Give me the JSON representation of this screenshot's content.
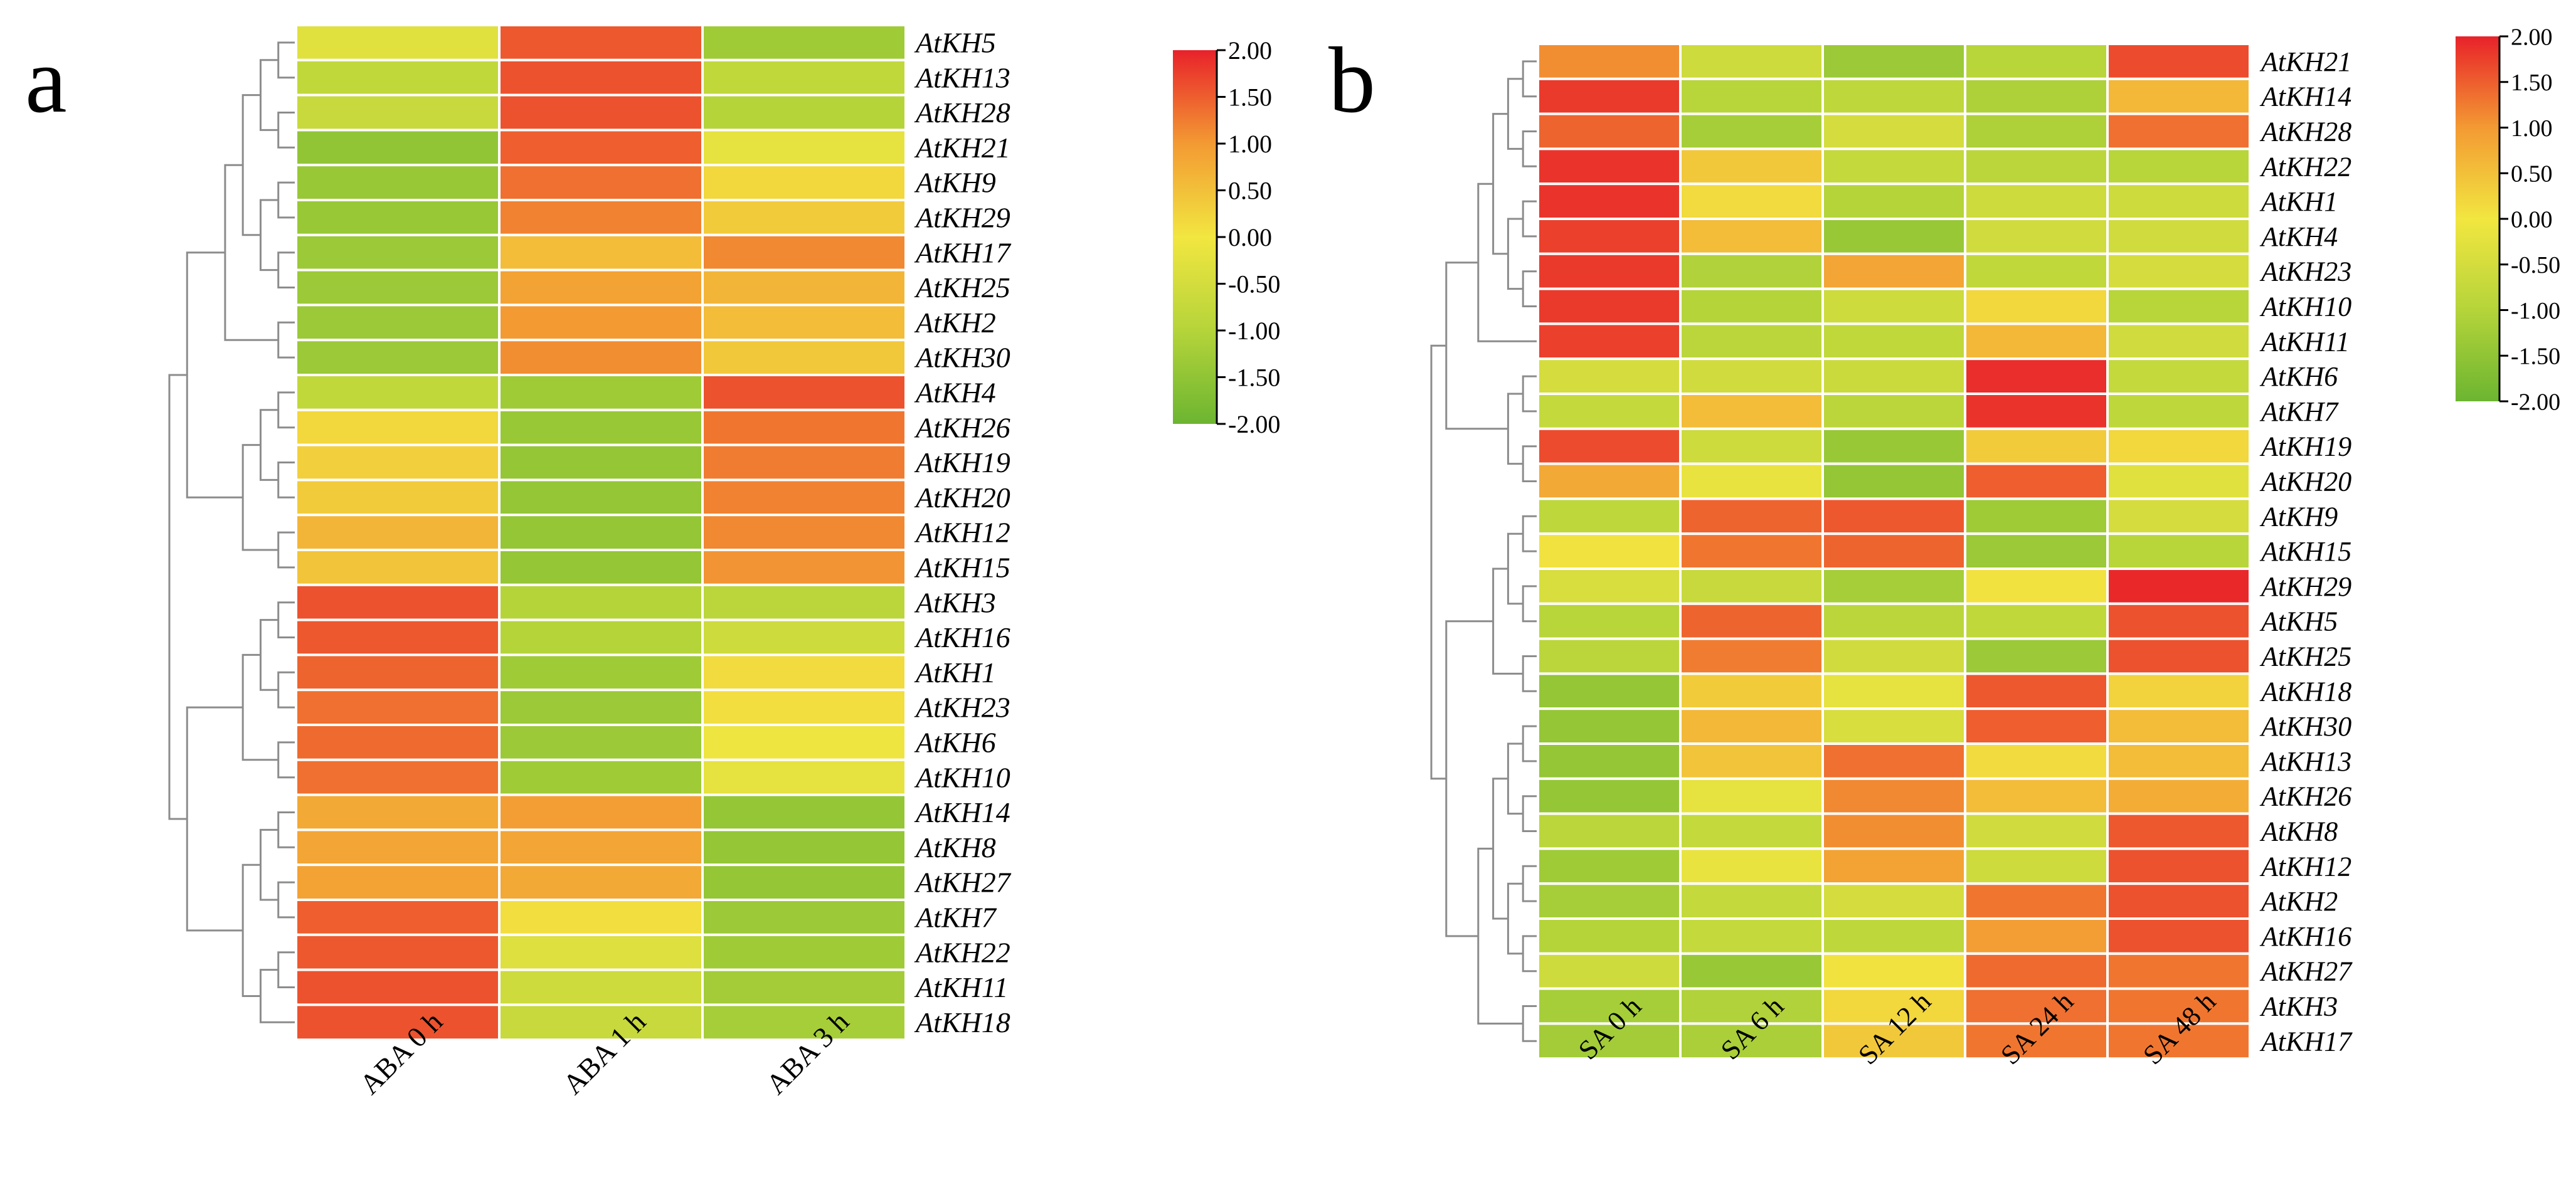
{
  "panels": [
    {
      "letter": "a"
    },
    {
      "letter": "b"
    }
  ],
  "colors": {
    "scale": [
      "#6cb531",
      "#b5d43a",
      "#f2e640",
      "#f39a33",
      "#e8222a"
    ],
    "cell_border": "#ffffff",
    "dendrogram": "#8c8c8c"
  },
  "chart_data": [
    {
      "type": "heatmap",
      "title": "",
      "columns": [
        "ABA 0 h",
        "ABA 1 h",
        "ABA 3 h"
      ],
      "rows": [
        "AtKH5",
        "AtKH13",
        "AtKH28",
        "AtKH21",
        "AtKH9",
        "AtKH29",
        "AtKH17",
        "AtKH25",
        "AtKH2",
        "AtKH30",
        "AtKH4",
        "AtKH26",
        "AtKH19",
        "AtKH20",
        "AtKH12",
        "AtKH15",
        "AtKH3",
        "AtKH16",
        "AtKH1",
        "AtKH23",
        "AtKH6",
        "AtKH10",
        "AtKH14",
        "AtKH8",
        "AtKH27",
        "AtKH7",
        "AtKH22",
        "AtKH11",
        "AtKH18"
      ],
      "values": [
        [
          -0.3,
          1.55,
          -1.3
        ],
        [
          -0.8,
          1.6,
          -0.8
        ],
        [
          -0.7,
          1.6,
          -1.0
        ],
        [
          -1.5,
          1.5,
          -0.2
        ],
        [
          -1.4,
          1.35,
          0.2
        ],
        [
          -1.4,
          1.2,
          0.35
        ],
        [
          -1.35,
          0.55,
          1.15
        ],
        [
          -1.35,
          0.9,
          0.65
        ],
        [
          -1.35,
          1.0,
          0.55
        ],
        [
          -1.35,
          1.1,
          0.4
        ],
        [
          -0.8,
          -1.3,
          1.6
        ],
        [
          0.2,
          -1.4,
          1.3
        ],
        [
          0.3,
          -1.45,
          1.25
        ],
        [
          0.35,
          -1.45,
          1.2
        ],
        [
          0.65,
          -1.45,
          1.15
        ],
        [
          0.45,
          -1.45,
          1.05
        ],
        [
          1.6,
          -1.0,
          -0.9
        ],
        [
          1.55,
          -1.0,
          -0.6
        ],
        [
          1.45,
          -1.3,
          0.15
        ],
        [
          1.35,
          -1.35,
          0.1
        ],
        [
          1.4,
          -1.35,
          -0.05
        ],
        [
          1.35,
          -1.3,
          -0.2
        ],
        [
          0.8,
          0.95,
          -1.45
        ],
        [
          0.85,
          0.85,
          -1.45
        ],
        [
          0.9,
          0.8,
          -1.45
        ],
        [
          1.5,
          0.1,
          -1.35
        ],
        [
          1.55,
          -0.35,
          -1.3
        ],
        [
          1.6,
          -0.6,
          -1.25
        ],
        [
          1.6,
          -0.7,
          -1.2
        ]
      ],
      "colorbar": {
        "min": -2.0,
        "max": 2.0,
        "ticks": [
          "2.00",
          "1.50",
          "1.00",
          "0.50",
          "0.00",
          "-0.50",
          "-1.00",
          "-1.50",
          "-2.00"
        ]
      }
    },
    {
      "type": "heatmap",
      "title": "",
      "columns": [
        "SA 0 h",
        "SA 6 h",
        "SA 12 h",
        "SA 24 h",
        "SA 48 h"
      ],
      "rows": [
        "AtKH21",
        "AtKH14",
        "AtKH28",
        "AtKH22",
        "AtKH1",
        "AtKH4",
        "AtKH23",
        "AtKH10",
        "AtKH11",
        "AtKH6",
        "AtKH7",
        "AtKH19",
        "AtKH20",
        "AtKH9",
        "AtKH15",
        "AtKH29",
        "AtKH5",
        "AtKH25",
        "AtKH18",
        "AtKH30",
        "AtKH13",
        "AtKH26",
        "AtKH8",
        "AtKH12",
        "AtKH2",
        "AtKH16",
        "AtKH27",
        "AtKH3",
        "AtKH17"
      ],
      "values": [
        [
          1.1,
          -0.6,
          -1.35,
          -0.95,
          1.65
        ],
        [
          1.8,
          -0.95,
          -0.85,
          -1.1,
          0.6
        ],
        [
          1.45,
          -1.2,
          -0.5,
          -1.1,
          1.35
        ],
        [
          1.85,
          0.4,
          -0.75,
          -0.9,
          -0.95
        ],
        [
          1.85,
          0.15,
          -1.0,
          -0.6,
          -0.6
        ],
        [
          1.75,
          0.55,
          -1.4,
          -0.55,
          -0.55
        ],
        [
          1.8,
          -1.05,
          0.85,
          -0.8,
          -0.5
        ],
        [
          1.8,
          -1.0,
          -0.6,
          0.2,
          -0.95
        ],
        [
          1.75,
          -0.9,
          -0.8,
          0.6,
          -0.55
        ],
        [
          -0.5,
          -0.55,
          -0.65,
          1.9,
          -0.75
        ],
        [
          -0.75,
          0.55,
          -0.9,
          1.85,
          -0.85
        ],
        [
          1.65,
          -0.6,
          -1.4,
          0.35,
          0.2
        ],
        [
          0.8,
          -0.15,
          -1.45,
          1.5,
          -0.3
        ],
        [
          -0.85,
          1.45,
          1.55,
          -1.3,
          -0.5
        ],
        [
          0.05,
          1.3,
          1.45,
          -1.35,
          -0.95
        ],
        [
          -0.45,
          -0.7,
          -1.2,
          0.05,
          1.95
        ],
        [
          -0.95,
          1.45,
          -0.9,
          -0.8,
          1.6
        ],
        [
          -0.9,
          1.25,
          -0.55,
          -1.35,
          1.6
        ],
        [
          -1.45,
          0.35,
          -0.2,
          1.55,
          0.25
        ],
        [
          -1.45,
          0.6,
          -0.45,
          1.5,
          0.55
        ],
        [
          -1.45,
          0.45,
          1.35,
          0.15,
          0.55
        ],
        [
          -1.45,
          -0.2,
          1.15,
          0.55,
          0.75
        ],
        [
          -0.9,
          -0.75,
          1.1,
          -0.55,
          1.55
        ],
        [
          -1.3,
          -0.15,
          0.9,
          -0.6,
          1.6
        ],
        [
          -1.2,
          -0.75,
          -0.5,
          1.3,
          1.6
        ],
        [
          -1.0,
          -0.75,
          -0.85,
          0.95,
          1.6
        ],
        [
          -0.6,
          -1.4,
          0.05,
          1.4,
          1.3
        ],
        [
          -1.2,
          -1.05,
          0.2,
          1.35,
          1.3
        ],
        [
          -1.25,
          -1.15,
          0.4,
          1.3,
          1.3
        ]
      ],
      "colorbar": {
        "min": -2.0,
        "max": 2.0,
        "ticks": [
          "2.00",
          "1.50",
          "1.00",
          "0.50",
          "0.00",
          "-0.50",
          "-1.00",
          "-1.50",
          "-2.00"
        ]
      }
    }
  ]
}
